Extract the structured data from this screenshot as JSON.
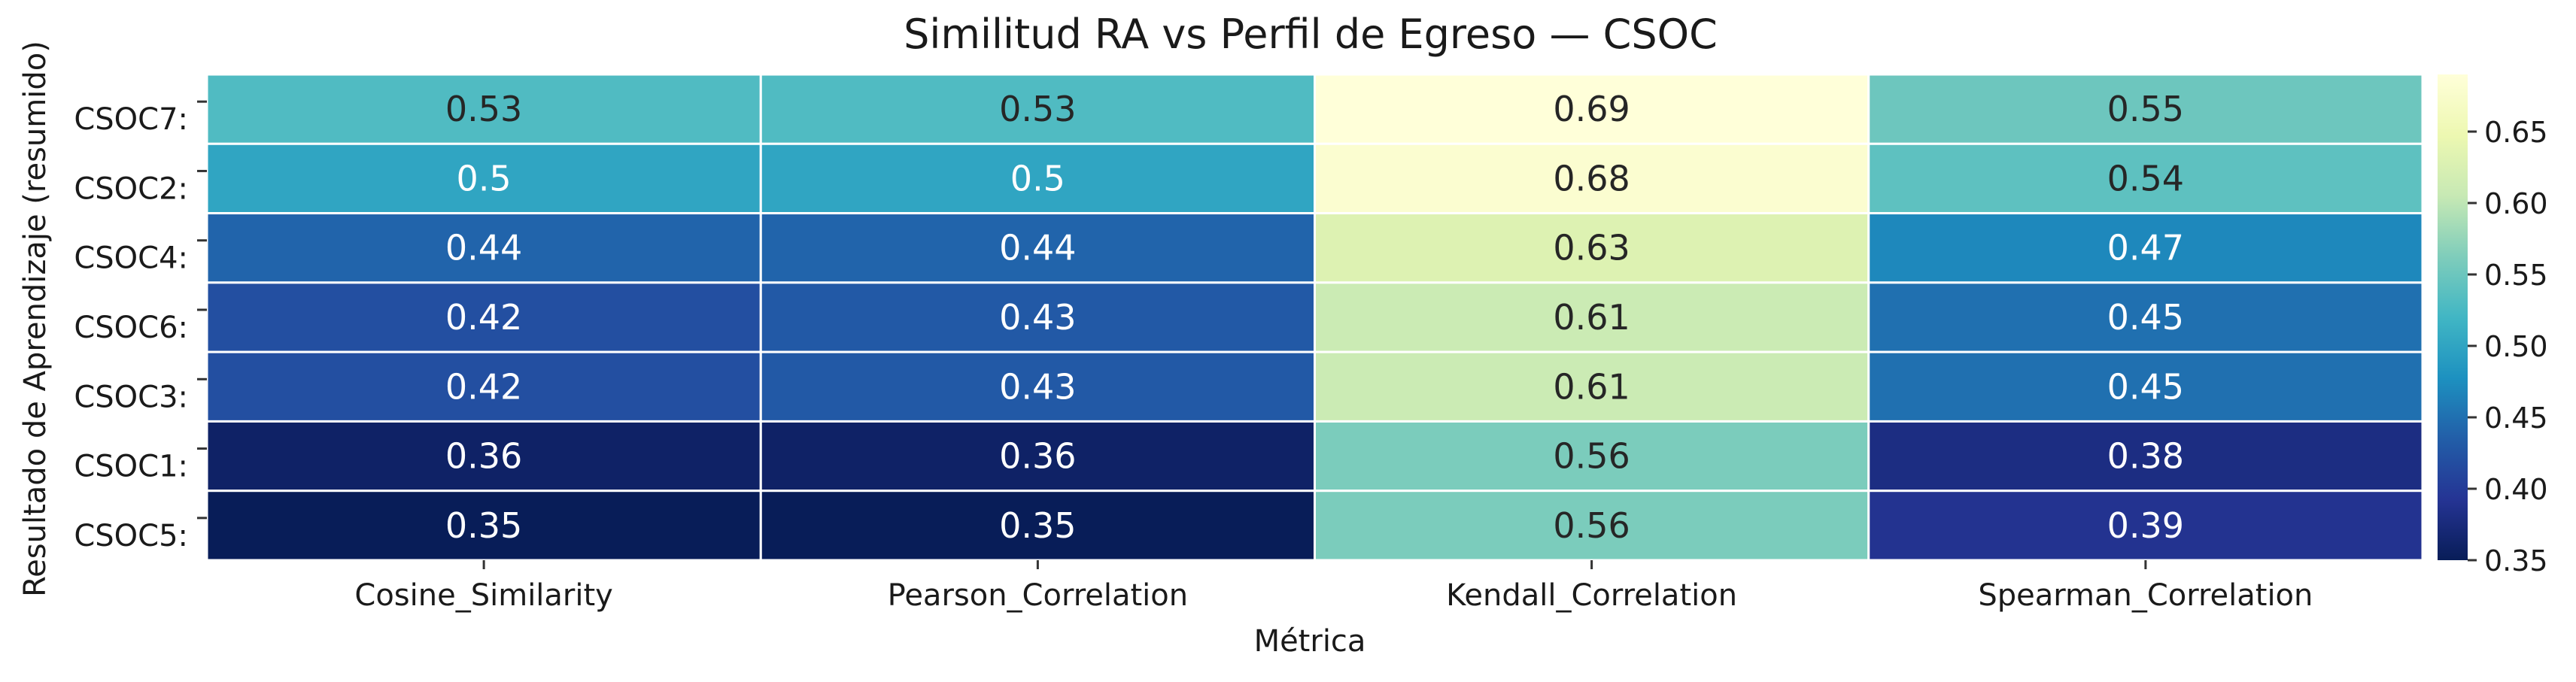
{
  "chart_data": {
    "type": "heatmap",
    "title": "Similitud RA vs Perfil de Egreso — CSOC",
    "xlabel": "Métrica",
    "ylabel": "Resultado de Aprendizaje (resumido)",
    "columns": [
      "Cosine_Similarity",
      "Pearson_Correlation",
      "Kendall_Correlation",
      "Spearman_Correlation"
    ],
    "rows": [
      "CSOC7:",
      "CSOC2:",
      "CSOC4:",
      "CSOC6:",
      "CSOC3:",
      "CSOC1:",
      "CSOC5:"
    ],
    "values": [
      [
        0.53,
        0.53,
        0.69,
        0.55
      ],
      [
        0.5,
        0.5,
        0.68,
        0.54
      ],
      [
        0.44,
        0.44,
        0.63,
        0.47
      ],
      [
        0.42,
        0.43,
        0.61,
        0.45
      ],
      [
        0.42,
        0.43,
        0.61,
        0.45
      ],
      [
        0.36,
        0.36,
        0.56,
        0.38
      ],
      [
        0.35,
        0.35,
        0.56,
        0.39
      ]
    ],
    "colorscale": "YlGnBu",
    "vmin": 0.35,
    "vmax": 0.69,
    "colorbar_ticks": [
      "0.35",
      "0.40",
      "0.45",
      "0.50",
      "0.55",
      "0.60",
      "0.65"
    ],
    "grid": false
  }
}
